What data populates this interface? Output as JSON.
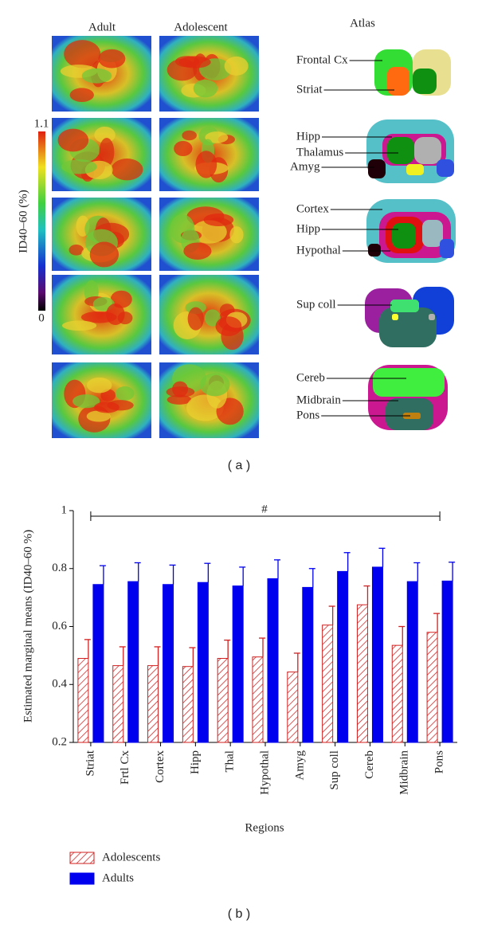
{
  "panel_a": {
    "label": "( a )",
    "columns": [
      "Adult",
      "Adolescent",
      "Atlas"
    ],
    "colorbar": {
      "max": 1.1,
      "min": 0,
      "label": "ID40–60 (%)"
    },
    "atlas_labels": [
      "Frontal Cx",
      "Striat",
      "Hipp",
      "Thalamus",
      "Amyg",
      "Cortex",
      "Hipp",
      "Hypothal",
      "Sup coll",
      "Cereb",
      "Midbrain",
      "Pons"
    ]
  },
  "panel_b_label": "( b )",
  "chart_data": {
    "type": "bar",
    "ylabel": "Estimated marginal means (ID40–60 %)",
    "xlabel": "Regions",
    "annotation": "#",
    "categories": [
      "Striat",
      "Frtl Cx",
      "Cortex",
      "Hipp",
      "Thal",
      "Hypothal",
      "Amyg",
      "Sup coll",
      "Cereb",
      "Midbrain",
      "Pons"
    ],
    "series": [
      {
        "name": "Adolescents",
        "color": "#d02020",
        "pattern": "hatch",
        "values": [
          0.49,
          0.465,
          0.465,
          0.462,
          0.49,
          0.495,
          0.443,
          0.605,
          0.675,
          0.535,
          0.58
        ],
        "errors": [
          0.065,
          0.065,
          0.065,
          0.065,
          0.063,
          0.065,
          0.065,
          0.065,
          0.065,
          0.065,
          0.065
        ]
      },
      {
        "name": "Adults",
        "color": "#0000ee",
        "values": [
          0.745,
          0.755,
          0.745,
          0.752,
          0.74,
          0.765,
          0.735,
          0.79,
          0.805,
          0.755,
          0.757
        ],
        "errors": [
          0.065,
          0.065,
          0.067,
          0.066,
          0.065,
          0.065,
          0.065,
          0.065,
          0.065,
          0.065,
          0.065
        ]
      }
    ],
    "ylim": [
      0.2,
      1
    ],
    "yticks": [
      0.2,
      0.4,
      0.6,
      0.8,
      1
    ]
  }
}
